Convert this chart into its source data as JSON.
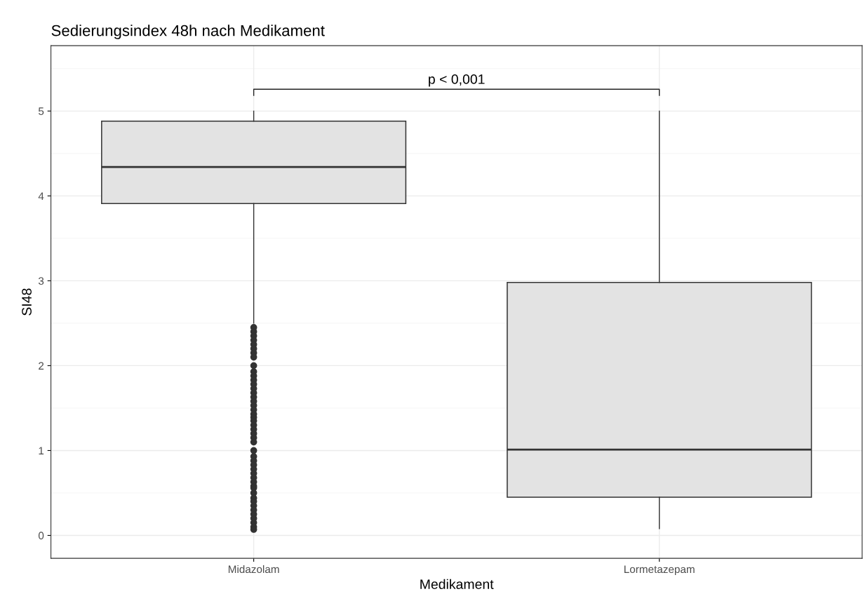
{
  "chart_data": {
    "type": "box",
    "title": "Sedierungsindex 48h nach Medikament",
    "xlabel": "Medikament",
    "ylabel": "SI48",
    "categories": [
      "Midazolam",
      "Lormetazepam"
    ],
    "boxes": [
      {
        "low": 2.5,
        "q1": 3.91,
        "median": 4.34,
        "q3": 4.88,
        "high": 5,
        "outliers": [
          2.45,
          2.4,
          2.35,
          2.3,
          2.25,
          2.2,
          2.15,
          2.1,
          2.0,
          1.93,
          1.88,
          1.83,
          1.78,
          1.73,
          1.68,
          1.63,
          1.58,
          1.53,
          1.48,
          1.43,
          1.39,
          1.35,
          1.3,
          1.25,
          1.2,
          1.15,
          1.1,
          1.0,
          0.93,
          0.88,
          0.83,
          0.78,
          0.73,
          0.68,
          0.63,
          0.58,
          0.56,
          0.5,
          0.44,
          0.4,
          0.35,
          0.3,
          0.25,
          0.2,
          0.15,
          0.1,
          0.07
        ]
      },
      {
        "low": 0.08,
        "q1": 0.45,
        "median": 1.01,
        "q3": 2.98,
        "high": 5
      }
    ],
    "color": "#e3e3e3",
    "ylim": [
      -0.27,
      5.77
    ],
    "yticks": [
      0,
      1,
      2,
      3,
      4,
      5
    ],
    "grid": true,
    "annotations": [
      "p < 0,001"
    ]
  }
}
